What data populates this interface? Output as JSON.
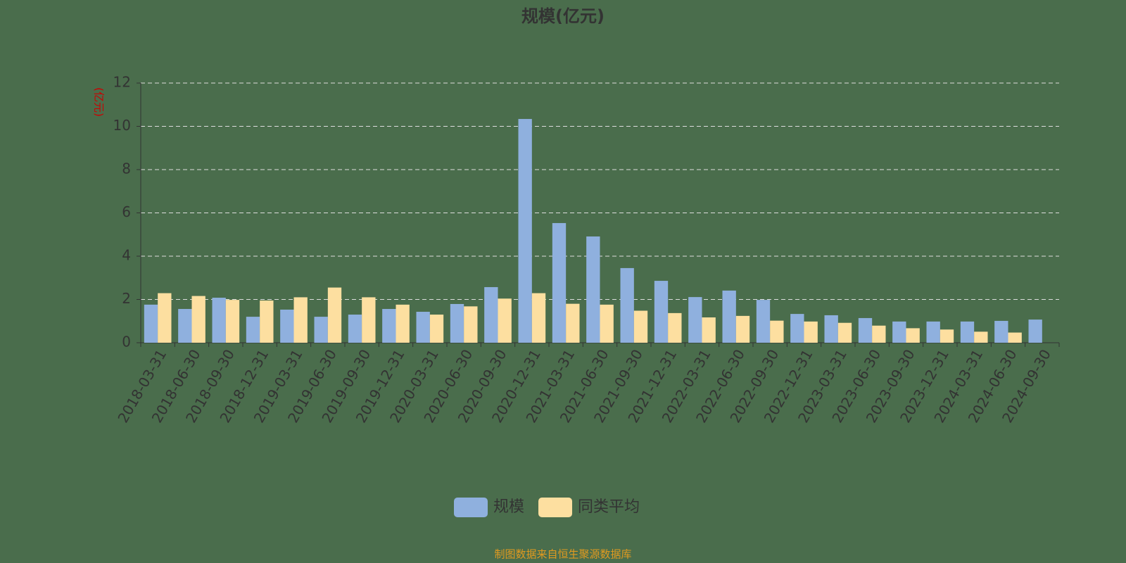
{
  "chart_data": {
    "type": "bar",
    "title": "规模(亿元)",
    "y_axis_label": "(亿元)",
    "footer": "制图数据来自恒生聚源数据库",
    "categories": [
      "2018-03-31",
      "2018-06-30",
      "2018-09-30",
      "2018-12-31",
      "2019-03-31",
      "2019-06-30",
      "2019-09-30",
      "2019-12-31",
      "2020-03-31",
      "2020-06-30",
      "2020-09-30",
      "2020-12-31",
      "2021-03-31",
      "2021-06-30",
      "2021-09-30",
      "2021-12-31",
      "2022-03-31",
      "2022-06-30",
      "2022-09-30",
      "2022-12-31",
      "2023-03-31",
      "2023-06-30",
      "2023-09-30",
      "2023-12-31",
      "2024-03-31",
      "2024-06-30",
      "2024-09-30"
    ],
    "series": [
      {
        "name": "规模",
        "color": "#8fb0de",
        "values": [
          1.76,
          1.56,
          2.08,
          1.2,
          1.53,
          1.2,
          1.3,
          1.56,
          1.43,
          1.79,
          2.57,
          10.34,
          5.53,
          4.91,
          3.45,
          2.86,
          2.11,
          2.41,
          1.98,
          1.33,
          1.27,
          1.14,
          0.98,
          0.98,
          0.98,
          1.01,
          1.07
        ]
      },
      {
        "name": "同类平均",
        "color": "#fddfa0",
        "values": [
          2.29,
          2.16,
          1.98,
          1.95,
          2.1,
          2.55,
          2.1,
          1.76,
          1.3,
          1.68,
          2.04,
          2.29,
          1.8,
          1.76,
          1.48,
          1.37,
          1.17,
          1.24,
          1.02,
          0.98,
          0.92,
          0.79,
          0.67,
          0.61,
          0.51,
          0.47,
          null
        ]
      }
    ],
    "ylim": [
      0,
      12
    ],
    "yticks": [
      0,
      2,
      4,
      6,
      8,
      10,
      12
    ],
    "grid": true
  }
}
